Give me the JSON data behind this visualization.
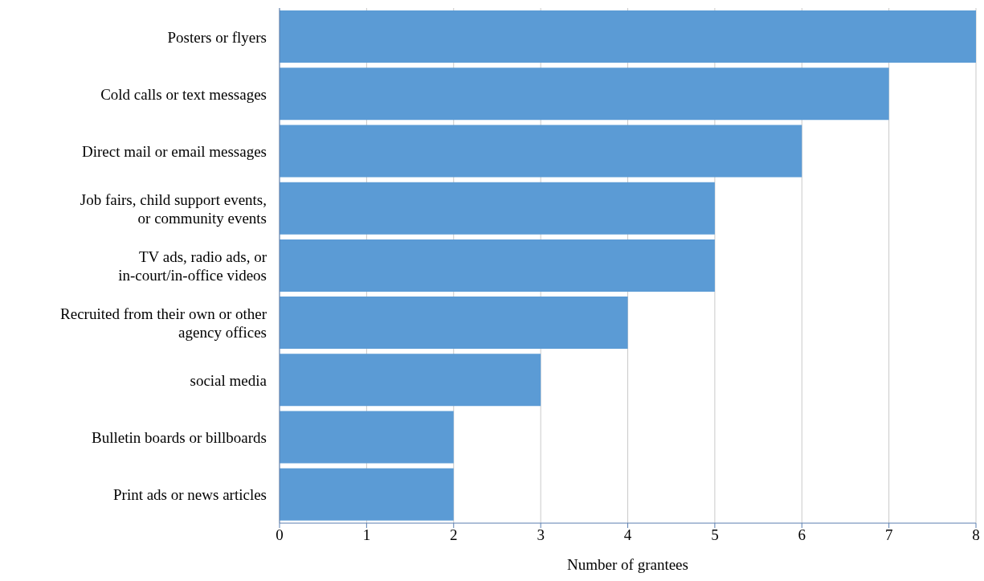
{
  "chart_data": {
    "type": "bar",
    "orientation": "horizontal",
    "xlabel": "Number of grantees",
    "categories": [
      "Posters or flyers",
      "Cold calls or text messages",
      "Direct mail or email messages",
      "Job fairs, child support events, or community events",
      "TV ads, radio ads, or in-court/in-office videos",
      "Recruited from their own or other agency offices",
      "social media",
      "Bulletin boards or billboards",
      "Print ads or news articles"
    ],
    "values": [
      8,
      7,
      6,
      5,
      5,
      4,
      3,
      2,
      2
    ],
    "color": "#5b9bd5",
    "xlim": [
      0,
      8
    ],
    "xticks": [
      0,
      1,
      2,
      3,
      4,
      5,
      6,
      7,
      8
    ],
    "grid": "x",
    "legend": false
  }
}
